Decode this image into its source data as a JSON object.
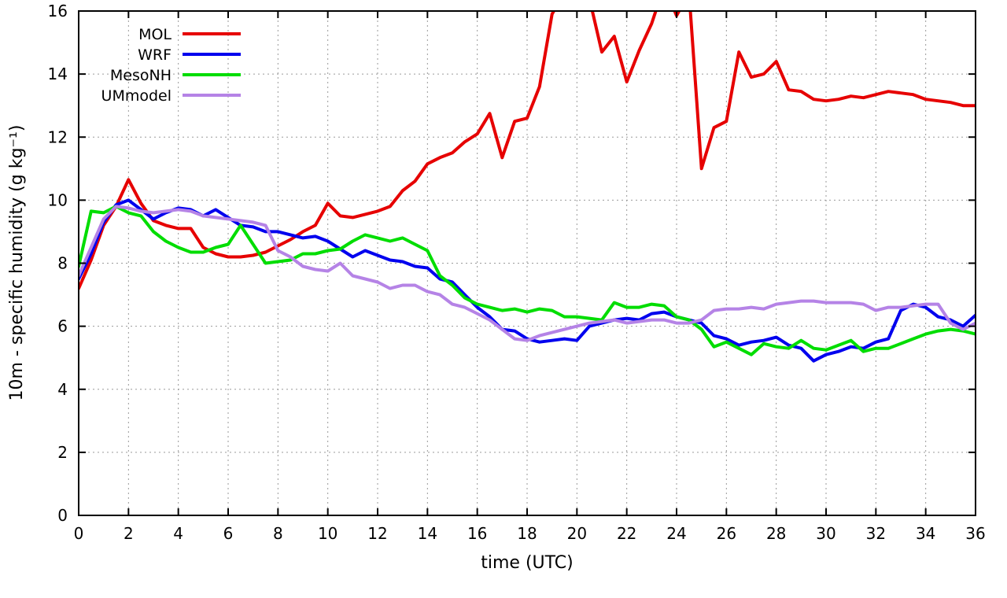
{
  "chart_data": {
    "type": "line",
    "title": "",
    "xlabel": "time (UTC)",
    "ylabel": "10m - specific humidity (g kg⁻¹)",
    "xlim": [
      0,
      36
    ],
    "ylim": [
      0,
      16
    ],
    "xticks": [
      0,
      2,
      4,
      6,
      8,
      10,
      12,
      14,
      16,
      18,
      20,
      22,
      24,
      26,
      28,
      30,
      32,
      34,
      36
    ],
    "yticks": [
      0,
      2,
      4,
      6,
      8,
      10,
      12,
      14,
      16
    ],
    "grid": true,
    "grid_color": "#9a9a9a",
    "border_color": "#000000",
    "legend_position": "top-left",
    "x_start": 0,
    "x_step": 0.5,
    "series": [
      {
        "name": "MOL",
        "color": "#e60000",
        "values": [
          7.2,
          8.1,
          9.2,
          9.8,
          10.65,
          9.9,
          9.35,
          9.2,
          9.1,
          9.1,
          8.5,
          8.3,
          8.2,
          8.2,
          8.25,
          8.35,
          8.55,
          8.75,
          9.0,
          9.2,
          9.9,
          9.5,
          9.45,
          9.55,
          9.65,
          9.8,
          10.3,
          10.6,
          11.15,
          11.35,
          11.5,
          11.85,
          12.1,
          12.75,
          11.35,
          12.5,
          12.6,
          13.6,
          15.9,
          16.6,
          17.2,
          16.4,
          14.7,
          15.2,
          13.75,
          14.75,
          15.6,
          16.8,
          15.85,
          16.6,
          11.0,
          12.3,
          12.5,
          14.7,
          13.9,
          14.0,
          14.4,
          13.5,
          13.45,
          13.2,
          13.15,
          13.2,
          13.3,
          13.25,
          13.35,
          13.45,
          13.4,
          13.35,
          13.2,
          13.15,
          13.1,
          13.0,
          13.0
        ]
      },
      {
        "name": "WRF",
        "color": "#0000ee",
        "values": [
          7.5,
          8.3,
          9.3,
          9.85,
          10.0,
          9.7,
          9.4,
          9.6,
          9.75,
          9.7,
          9.5,
          9.7,
          9.45,
          9.2,
          9.15,
          9.0,
          9.0,
          8.9,
          8.8,
          8.85,
          8.7,
          8.45,
          8.2,
          8.4,
          8.25,
          8.1,
          8.05,
          7.9,
          7.85,
          7.5,
          7.4,
          7.0,
          6.6,
          6.3,
          5.9,
          5.85,
          5.6,
          5.5,
          5.55,
          5.6,
          5.55,
          6.0,
          6.1,
          6.2,
          6.25,
          6.2,
          6.4,
          6.45,
          6.3,
          6.2,
          6.1,
          5.7,
          5.6,
          5.4,
          5.5,
          5.55,
          5.65,
          5.4,
          5.3,
          4.9,
          5.1,
          5.2,
          5.35,
          5.3,
          5.5,
          5.6,
          6.5,
          6.7,
          6.6,
          6.3,
          6.2,
          6.0,
          6.35
        ]
      },
      {
        "name": "MesoNH",
        "color": "#00dd00",
        "values": [
          7.9,
          9.65,
          9.6,
          9.8,
          9.6,
          9.5,
          9.0,
          8.7,
          8.5,
          8.35,
          8.35,
          8.5,
          8.6,
          9.2,
          8.6,
          8.0,
          8.05,
          8.1,
          8.3,
          8.3,
          8.4,
          8.45,
          8.7,
          8.9,
          8.8,
          8.7,
          8.8,
          8.6,
          8.4,
          7.6,
          7.3,
          6.9,
          6.7,
          6.6,
          6.5,
          6.55,
          6.45,
          6.55,
          6.5,
          6.3,
          6.3,
          6.25,
          6.2,
          6.75,
          6.6,
          6.6,
          6.7,
          6.65,
          6.3,
          6.2,
          5.9,
          5.35,
          5.5,
          5.3,
          5.1,
          5.45,
          5.35,
          5.3,
          5.55,
          5.3,
          5.25,
          5.4,
          5.55,
          5.2,
          5.3,
          5.3,
          5.45,
          5.6,
          5.75,
          5.85,
          5.9,
          5.85,
          5.75
        ]
      },
      {
        "name": "UMmodel",
        "color": "#b583e6",
        "values": [
          7.6,
          8.5,
          9.4,
          9.8,
          9.75,
          9.65,
          9.6,
          9.65,
          9.7,
          9.65,
          9.5,
          9.45,
          9.4,
          9.35,
          9.3,
          9.2,
          8.4,
          8.2,
          7.9,
          7.8,
          7.75,
          8.0,
          7.6,
          7.5,
          7.4,
          7.2,
          7.3,
          7.3,
          7.1,
          7.0,
          6.7,
          6.6,
          6.4,
          6.2,
          5.9,
          5.6,
          5.55,
          5.7,
          5.8,
          5.9,
          6.0,
          6.1,
          6.15,
          6.2,
          6.1,
          6.15,
          6.2,
          6.2,
          6.1,
          6.1,
          6.2,
          6.5,
          6.55,
          6.55,
          6.6,
          6.55,
          6.7,
          6.75,
          6.8,
          6.8,
          6.75,
          6.75,
          6.75,
          6.7,
          6.5,
          6.6,
          6.6,
          6.65,
          6.7,
          6.7,
          6.1,
          5.9,
          6.1
        ]
      }
    ]
  }
}
